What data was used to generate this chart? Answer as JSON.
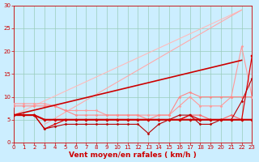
{
  "bg_color": "#cceeff",
  "grid_color": "#99ccbb",
  "xlabel": "Vent moyen/en rafales ( km/h )",
  "xlabel_color": "#cc0000",
  "xlabel_fontsize": 6.5,
  "xtick_fontsize": 5,
  "ytick_fontsize": 5,
  "xlim": [
    0,
    23
  ],
  "ylim": [
    0,
    30
  ],
  "yticks": [
    0,
    5,
    10,
    15,
    20,
    25,
    30
  ],
  "xticks": [
    0,
    1,
    2,
    3,
    4,
    5,
    6,
    7,
    8,
    9,
    10,
    11,
    12,
    13,
    14,
    15,
    16,
    17,
    18,
    19,
    20,
    21,
    22,
    23
  ],
  "series": [
    {
      "x": [
        0,
        22
      ],
      "y": [
        6,
        29
      ],
      "color": "#ffbbbb",
      "lw": 0.8,
      "marker": null,
      "ms": 0,
      "zorder": 2
    },
    {
      "x": [
        3,
        22
      ],
      "y": [
        4,
        29
      ],
      "color": "#ffaaaa",
      "lw": 0.8,
      "marker": null,
      "ms": 0,
      "zorder": 2
    },
    {
      "x": [
        0,
        1,
        2,
        3,
        4,
        5,
        6,
        7,
        8,
        9,
        10,
        11,
        12,
        13,
        14,
        15,
        16,
        17,
        18,
        19,
        20,
        21,
        22,
        23
      ],
      "y": [
        8.5,
        8.5,
        8.5,
        8.5,
        8,
        7,
        7,
        7,
        7,
        6,
        6,
        6,
        6,
        6,
        6,
        6,
        8,
        10,
        8,
        8,
        8,
        10,
        21,
        10
      ],
      "color": "#ff9999",
      "lw": 0.8,
      "marker": "D",
      "ms": 1.5,
      "zorder": 3
    },
    {
      "x": [
        0,
        1,
        2,
        3,
        4,
        5,
        6,
        7,
        8,
        9,
        10,
        11,
        12,
        13,
        14,
        15,
        16,
        17,
        18,
        19,
        20,
        21,
        22,
        23
      ],
      "y": [
        8,
        8,
        8,
        8,
        8,
        7,
        6,
        6,
        6,
        6,
        6,
        6,
        6,
        5,
        6,
        6,
        10,
        11,
        10,
        10,
        10,
        10,
        10,
        10
      ],
      "color": "#ff8888",
      "lw": 0.8,
      "marker": "D",
      "ms": 1.5,
      "zorder": 3
    },
    {
      "x": [
        0,
        1,
        2,
        3,
        4,
        5,
        6,
        7,
        8,
        9,
        10,
        11,
        12,
        13,
        14,
        15,
        16,
        17,
        18,
        19,
        20,
        21,
        22,
        23
      ],
      "y": [
        6,
        6,
        6,
        5,
        5,
        5,
        5,
        5,
        5,
        5,
        5,
        5,
        5,
        5,
        5,
        5,
        5,
        6,
        6,
        5,
        5,
        6,
        5,
        5
      ],
      "color": "#ff6666",
      "lw": 0.8,
      "marker": "D",
      "ms": 1.5,
      "zorder": 4
    },
    {
      "x": [
        0,
        1,
        2,
        3,
        4,
        5,
        6,
        7,
        8,
        9,
        10,
        11,
        12,
        13,
        14,
        15,
        16,
        17,
        18,
        19,
        20,
        21,
        22,
        23
      ],
      "y": [
        6,
        6,
        6,
        3,
        4,
        5,
        5,
        5,
        5,
        5,
        5,
        5,
        5,
        5,
        5,
        5,
        5,
        6,
        5,
        5,
        5,
        5,
        5,
        19
      ],
      "color": "#dd0000",
      "lw": 0.9,
      "marker": "s",
      "ms": 1.5,
      "zorder": 5
    },
    {
      "x": [
        0,
        1,
        2,
        3,
        4,
        5,
        6,
        7,
        8,
        9,
        10,
        11,
        12,
        13,
        14,
        15,
        16,
        17,
        18,
        19,
        20,
        21,
        22,
        23
      ],
      "y": [
        6,
        6,
        6,
        5,
        5,
        5,
        5,
        5,
        5,
        5,
        5,
        5,
        5,
        5,
        5,
        5,
        5,
        5,
        5,
        5,
        5,
        5,
        5,
        5
      ],
      "color": "#cc0000",
      "lw": 1.5,
      "marker": "D",
      "ms": 1.8,
      "zorder": 6
    },
    {
      "x": [
        0,
        1,
        2,
        3,
        4,
        5,
        6,
        7,
        8,
        9,
        10,
        11,
        12,
        13,
        14,
        15,
        16,
        17,
        18,
        19,
        20,
        21,
        22,
        23
      ],
      "y": [
        6,
        6,
        6,
        3,
        3.5,
        4,
        4,
        4,
        4,
        4,
        4,
        4,
        4,
        2,
        4,
        5,
        6,
        6,
        4,
        4,
        5,
        5,
        9,
        14
      ],
      "color": "#bb0000",
      "lw": 0.8,
      "marker": "D",
      "ms": 1.5,
      "zorder": 5
    },
    {
      "x": [
        0,
        22
      ],
      "y": [
        6,
        18
      ],
      "color": "#cc0000",
      "lw": 1.2,
      "marker": null,
      "ms": 0,
      "zorder": 4
    }
  ]
}
